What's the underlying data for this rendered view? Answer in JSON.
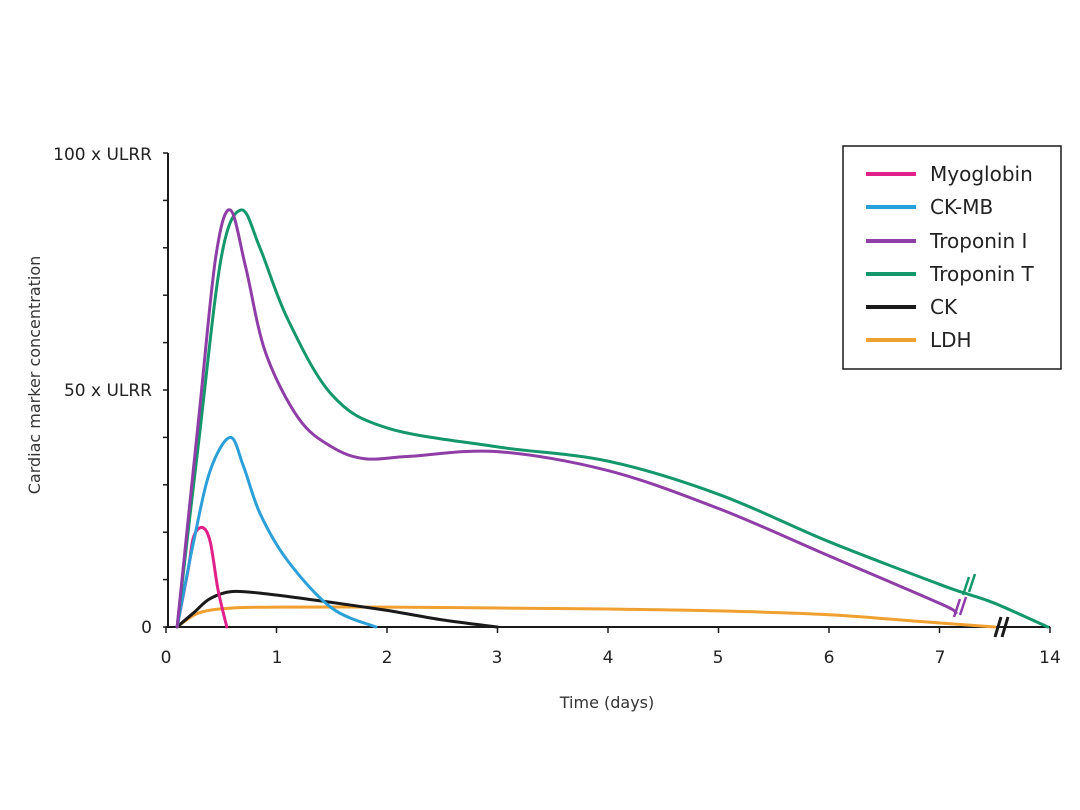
{
  "chart_data": {
    "type": "line",
    "title": "",
    "xlabel": "Time (days)",
    "ylabel": "Cardiac marker concentration",
    "x_ticks": [
      "0",
      "1",
      "2",
      "3",
      "4",
      "5",
      "6",
      "7",
      "14"
    ],
    "y_ticks": [
      {
        "label": "0",
        "value": 0
      },
      {
        "label": "50 x ULRR",
        "value": 50
      },
      {
        "label": "100 x ULRR",
        "value": 100
      }
    ],
    "xlim": [
      0,
      8
    ],
    "ylim": [
      0,
      100
    ],
    "axis_break_note": "x-axis break between 7 and 14 days",
    "legend_position": "top-right",
    "series": [
      {
        "name": "Myoglobin",
        "color": "#e0218a",
        "x": [
          0.1,
          0.2,
          0.25,
          0.33,
          0.4,
          0.47,
          0.55
        ],
        "y": [
          0,
          12,
          19,
          21,
          18,
          8,
          0
        ]
      },
      {
        "name": "CK-MB",
        "color": "#2a9fd8",
        "x": [
          0.1,
          0.25,
          0.4,
          0.58,
          0.7,
          0.85,
          1.1,
          1.5,
          1.9
        ],
        "y": [
          0,
          18,
          33,
          40,
          34,
          24,
          14,
          4,
          0
        ]
      },
      {
        "name": "Troponin I",
        "color": "#8e3ea6",
        "x": [
          0.1,
          0.3,
          0.45,
          0.58,
          0.72,
          0.9,
          1.2,
          1.5,
          1.8,
          2.2,
          3.0,
          4.0,
          5.0,
          6.0,
          7.0,
          7.15
        ],
        "y": [
          0,
          45,
          78,
          88,
          76,
          58,
          44,
          38,
          35.5,
          36,
          37,
          33,
          25,
          15,
          5,
          3
        ]
      },
      {
        "name": "Troponin T",
        "color": "#14976b",
        "x": [
          0.1,
          0.3,
          0.5,
          0.68,
          0.85,
          1.1,
          1.5,
          2.0,
          3.0,
          4.0,
          5.0,
          6.0,
          7.0,
          7.25,
          7.5,
          7.98
        ],
        "y": [
          0,
          40,
          78,
          88,
          80,
          65,
          49,
          42,
          38,
          35,
          28,
          18,
          9,
          7,
          5,
          0
        ]
      },
      {
        "name": "CK",
        "color": "#1a1a1a",
        "x": [
          0.1,
          0.25,
          0.4,
          0.6,
          0.9,
          1.4,
          2.0,
          2.5,
          3.0
        ],
        "y": [
          0,
          3,
          6,
          7.5,
          7,
          5.5,
          3.5,
          1.5,
          0
        ]
      },
      {
        "name": "LDH",
        "color": "#f0a030",
        "x": [
          0.1,
          0.3,
          0.6,
          1.0,
          2.0,
          3.0,
          4.0,
          5.0,
          6.0,
          6.8,
          7.5
        ],
        "y": [
          0,
          3,
          4,
          4.2,
          4.2,
          4,
          3.8,
          3.4,
          2.6,
          1.2,
          0
        ]
      }
    ]
  }
}
